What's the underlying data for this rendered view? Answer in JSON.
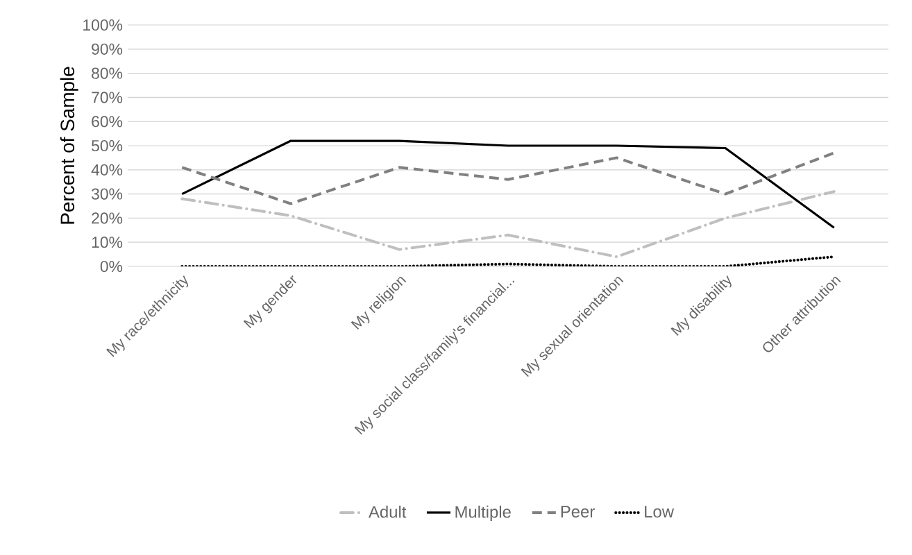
{
  "chart_data": {
    "type": "line",
    "ylabel": "Percent of Sample",
    "categories": [
      "My race/ethnicity",
      "My gender",
      "My religion",
      "My social class/family's financial...",
      "My sexual orientation",
      "My disability",
      "Other attribution"
    ],
    "series": [
      {
        "name": "Adult",
        "color": "#bfbfbf",
        "line_style": "dashdot",
        "values": [
          28,
          21,
          7,
          13,
          4,
          20,
          31
        ]
      },
      {
        "name": "Multiple",
        "color": "#000000",
        "line_style": "solid",
        "values": [
          30,
          52,
          52,
          50,
          50,
          49,
          16
        ]
      },
      {
        "name": "Peer",
        "color": "#808080",
        "line_style": "dashed",
        "values": [
          41,
          26,
          41,
          36,
          45,
          30,
          47
        ]
      },
      {
        "name": "Low",
        "color": "#000000",
        "line_style": "dotted",
        "values": [
          0,
          0,
          0,
          1,
          0,
          0,
          4
        ]
      }
    ],
    "ylim": [
      0,
      100
    ],
    "yticks": [
      {
        "value": 0,
        "label": "0%"
      },
      {
        "value": 10,
        "label": "10%"
      },
      {
        "value": 20,
        "label": "20%"
      },
      {
        "value": 30,
        "label": "30%"
      },
      {
        "value": 40,
        "label": "40%"
      },
      {
        "value": 50,
        "label": "50%"
      },
      {
        "value": 60,
        "label": "60%"
      },
      {
        "value": 70,
        "label": "70%"
      },
      {
        "value": 80,
        "label": "80%"
      },
      {
        "value": 90,
        "label": "90%"
      },
      {
        "value": 100,
        "label": "100%"
      }
    ],
    "grid": "y",
    "legend": "bottom",
    "marker": "none"
  }
}
